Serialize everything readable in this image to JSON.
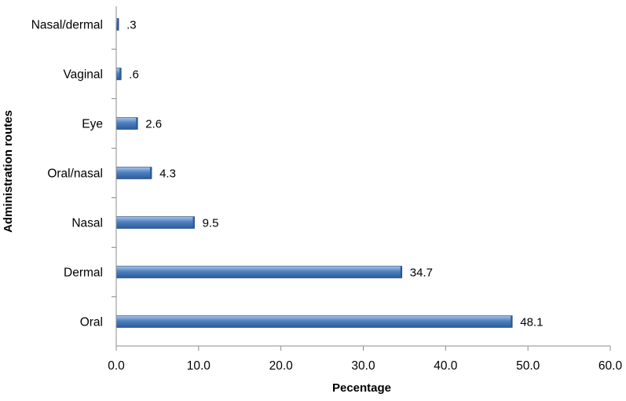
{
  "chart_data": {
    "type": "bar",
    "orientation": "horizontal",
    "title": "",
    "xlabel": "Pecentage",
    "ylabel": "Administration routes",
    "categories": [
      "Nasal/dermal",
      "Vaginal",
      "Eye",
      "Oral/nasal",
      "Nasal",
      "Dermal",
      "Oral"
    ],
    "values": [
      0.3,
      0.6,
      2.6,
      4.3,
      9.5,
      34.7,
      48.1
    ],
    "value_labels": [
      ".3",
      ".6",
      "2.6",
      "4.3",
      "9.5",
      "34.7",
      "48.1"
    ],
    "xlim": [
      0,
      60
    ],
    "xticks": [
      0,
      10,
      20,
      30,
      40,
      50,
      60
    ],
    "xtick_labels": [
      "0.0",
      "10.0",
      "20.0",
      "30.0",
      "40.0",
      "50.0",
      "60.0"
    ],
    "grid": false,
    "legend": "none",
    "colors": {
      "bar_top": "#a9c4ee",
      "bar_mid": "#4f81bd",
      "bar_bottom": "#2a5b9c",
      "bar_edge": "#1f3f6b",
      "axis": "#8c8c8c"
    }
  }
}
